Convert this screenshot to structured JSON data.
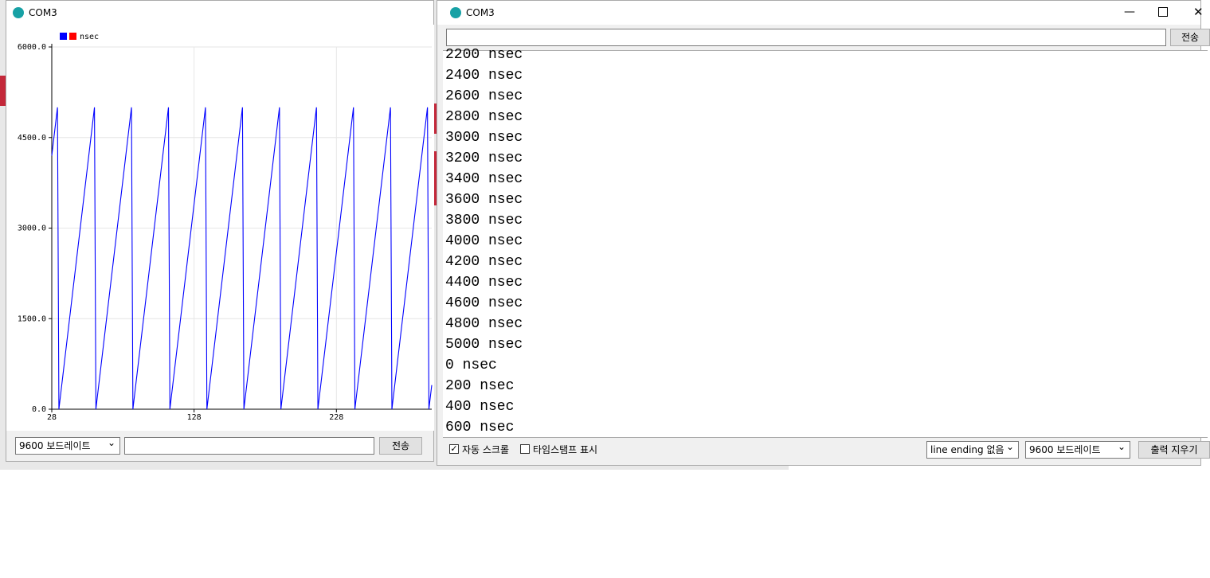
{
  "chart_data": {
    "type": "line",
    "x": [
      28,
      29,
      30,
      31,
      32,
      33,
      34,
      35,
      36,
      37,
      38,
      39,
      40,
      41,
      42,
      43,
      44,
      45,
      46,
      47,
      48,
      49,
      50,
      51,
      52,
      53,
      54,
      55,
      56,
      57,
      58,
      59,
      60,
      61,
      62,
      63,
      64,
      65,
      66,
      67,
      68,
      69,
      70,
      71,
      72,
      73,
      74,
      75,
      76,
      77,
      78,
      79,
      80,
      81,
      82,
      83,
      84,
      85,
      86,
      87,
      88,
      89,
      90,
      91,
      92,
      93,
      94,
      95,
      96,
      97,
      98,
      99,
      100,
      101,
      102,
      103,
      104,
      105,
      106,
      107,
      108,
      109,
      110,
      111,
      112,
      113,
      114,
      115,
      116,
      117,
      118,
      119,
      120,
      121,
      122,
      123,
      124,
      125,
      126,
      127,
      128,
      129,
      130,
      131,
      132,
      133,
      134,
      135,
      136,
      137,
      138,
      139,
      140,
      141,
      142,
      143,
      144,
      145,
      146,
      147,
      148,
      149,
      150,
      151,
      152,
      153,
      154,
      155,
      156,
      157,
      158,
      159,
      160,
      161,
      162,
      163,
      164,
      165,
      166,
      167,
      168,
      169,
      170,
      171,
      172,
      173,
      174,
      175,
      176,
      177,
      178,
      179,
      180,
      181,
      182,
      183,
      184,
      185,
      186,
      187,
      188,
      189,
      190,
      191,
      192,
      193,
      194,
      195,
      196,
      197,
      198,
      199,
      200,
      201,
      202,
      203,
      204,
      205,
      206,
      207,
      208,
      209,
      210,
      211,
      212,
      213,
      214,
      215,
      216,
      217,
      218,
      219,
      220,
      221,
      222,
      223,
      224,
      225,
      226,
      227,
      228,
      229,
      230,
      231,
      232,
      233,
      234,
      235,
      236,
      237,
      238,
      239,
      240,
      241,
      242,
      243,
      244,
      245,
      246,
      247,
      248,
      249,
      250,
      251,
      252,
      253,
      254,
      255,
      256,
      257,
      258,
      259,
      260,
      261,
      262,
      263,
      264,
      265,
      266,
      267,
      268,
      269,
      270,
      271,
      272,
      273,
      274,
      275,
      276,
      277,
      278,
      279,
      280,
      281,
      282,
      283,
      284,
      285,
      286,
      287,
      288,
      289,
      290,
      291,
      292,
      293,
      294,
      295
    ],
    "series": [
      {
        "name": "nsec",
        "color": "#0000ff",
        "values": [
          4200,
          4400,
          4600,
          4800,
          5000,
          0,
          200,
          400,
          600,
          800,
          1000,
          1200,
          1400,
          1600,
          1800,
          2000,
          2200,
          2400,
          2600,
          2800,
          3000,
          3200,
          3400,
          3600,
          3800,
          4000,
          4200,
          4400,
          4600,
          4800,
          5000,
          0,
          200,
          400,
          600,
          800,
          1000,
          1200,
          1400,
          1600,
          1800,
          2000,
          2200,
          2400,
          2600,
          2800,
          3000,
          3200,
          3400,
          3600,
          3800,
          4000,
          4200,
          4400,
          4600,
          4800,
          5000,
          0,
          200,
          400,
          600,
          800,
          1000,
          1200,
          1400,
          1600,
          1800,
          2000,
          2200,
          2400,
          2600,
          2800,
          3000,
          3200,
          3400,
          3600,
          3800,
          4000,
          4200,
          4400,
          4600,
          4800,
          5000,
          0,
          200,
          400,
          600,
          800,
          1000,
          1200,
          1400,
          1600,
          1800,
          2000,
          2200,
          2400,
          2600,
          2800,
          3000,
          3200,
          3400,
          3600,
          3800,
          4000,
          4200,
          4400,
          4600,
          4800,
          5000,
          0,
          200,
          400,
          600,
          800,
          1000,
          1200,
          1400,
          1600,
          1800,
          2000,
          2200,
          2400,
          2600,
          2800,
          3000,
          3200,
          3400,
          3600,
          3800,
          4000,
          4200,
          4400,
          4600,
          4800,
          5000,
          0,
          200,
          400,
          600,
          800,
          1000,
          1200,
          1400,
          1600,
          1800,
          2000,
          2200,
          2400,
          2600,
          2800,
          3000,
          3200,
          3400,
          3600,
          3800,
          4000,
          4200,
          4400,
          4600,
          4800,
          5000,
          0,
          200,
          400,
          600,
          800,
          1000,
          1200,
          1400,
          1600,
          1800,
          2000,
          2200,
          2400,
          2600,
          2800,
          3000,
          3200,
          3400,
          3600,
          3800,
          4000,
          4200,
          4400,
          4600,
          4800,
          5000,
          0,
          200,
          400,
          600,
          800,
          1000,
          1200,
          1400,
          1600,
          1800,
          2000,
          2200,
          2400,
          2600,
          2800,
          3000,
          3200,
          3400,
          3600,
          3800,
          4000,
          4200,
          4400,
          4600,
          4800,
          5000,
          0,
          200,
          400,
          600,
          800,
          1000,
          1200,
          1400,
          1600,
          1800,
          2000,
          2200,
          2400,
          2600,
          2800,
          3000,
          3200,
          3400,
          3600,
          3800,
          4000,
          4200,
          4400,
          4600,
          4800,
          5000,
          0,
          200,
          400,
          600,
          800,
          1000,
          1200,
          1400,
          1600,
          1800,
          2000,
          2200,
          2400,
          2600,
          2800,
          3000,
          3200,
          3400,
          3600,
          3800,
          4000,
          4200,
          4400,
          4600,
          4800,
          5000,
          0,
          200,
          400
        ]
      }
    ],
    "xlim": [
      28,
      295
    ],
    "ylim": [
      0,
      6000
    ],
    "xticks": [
      28,
      128,
      228
    ],
    "yticks": [
      {
        "value": 0,
        "label": "0.0"
      },
      {
        "value": 1500,
        "label": "1500.0"
      },
      {
        "value": 3000,
        "label": "3000.0"
      },
      {
        "value": 4500,
        "label": "4500.0"
      },
      {
        "value": 6000,
        "label": "6000.0"
      }
    ],
    "grid": true
  },
  "plotter_window": {
    "title": "COM3",
    "baud": "9600 보드레이트",
    "send": "전송"
  },
  "monitor_window": {
    "title": "COM3",
    "send": "전송",
    "lines": [
      "2200 nsec",
      "2400 nsec",
      "2600 nsec",
      "2800 nsec",
      "3000 nsec",
      "3200 nsec",
      "3400 nsec",
      "3600 nsec",
      "3800 nsec",
      "4000 nsec",
      "4200 nsec",
      "4400 nsec",
      "4600 nsec",
      "4800 nsec",
      "5000 nsec",
      "0 nsec",
      "200 nsec",
      "400 nsec",
      "600 nsec"
    ],
    "autoscroll": "자동 스크롤",
    "timestamp": "타임스탬프 표시",
    "line_ending": "line ending 없음",
    "baud": "9600 보드레이트",
    "clear": "출력 지우기"
  }
}
